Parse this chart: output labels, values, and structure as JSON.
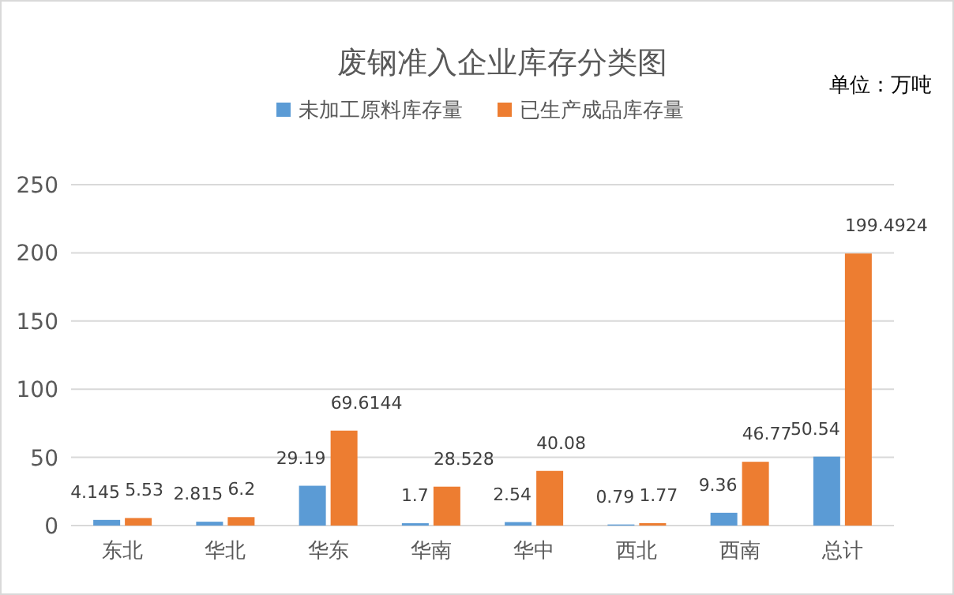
{
  "chart_data": {
    "type": "bar",
    "title": "废钢准入企业库存分类图",
    "annotations": [
      "单位：万吨"
    ],
    "categories": [
      "东北",
      "华北",
      "华东",
      "华南",
      "华中",
      "西北",
      "西南",
      "总计"
    ],
    "series": [
      {
        "name": "未加工原料库存量",
        "color": "#5b9bd5",
        "values": [
          4.145,
          2.815,
          29.19,
          1.7,
          2.54,
          0.79,
          9.36,
          50.54
        ]
      },
      {
        "name": "已生产成品库存量",
        "color": "#ed7d31",
        "values": [
          5.53,
          6.2,
          69.6144,
          28.528,
          40.08,
          1.77,
          46.77,
          199.4924
        ]
      }
    ],
    "ylim": [
      0,
      250
    ],
    "yticks": [
      0,
      50,
      100,
      150,
      200,
      250
    ],
    "grid": "y",
    "legend": "top",
    "data_labels": true
  }
}
